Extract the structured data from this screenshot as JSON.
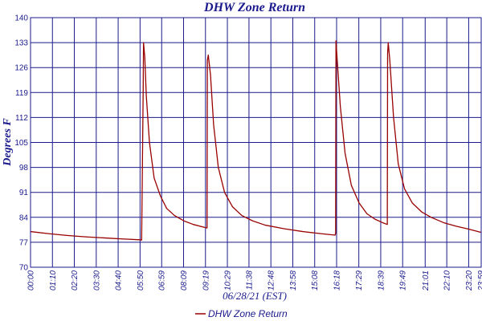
{
  "chart_data": {
    "type": "line",
    "title": "DHW Zone Return",
    "xlabel": "06/28/21 (EST)",
    "ylabel": "Degrees F",
    "ylim": [
      70,
      140
    ],
    "xlim_minutes": [
      0,
      1440
    ],
    "y_ticks": [
      "70",
      "77",
      "84",
      "91",
      "98",
      "105",
      "112",
      "119",
      "126",
      "133",
      "140"
    ],
    "x_ticks": [
      "00:00",
      "01:10",
      "02:20",
      "03:30",
      "04:40",
      "05:50",
      "06:59",
      "08:09",
      "09:19",
      "10:29",
      "11:38",
      "12:48",
      "13:58",
      "15:08",
      "16:18",
      "17:29",
      "18:39",
      "19:49",
      "21:01",
      "22:10",
      "23:20",
      "23:59"
    ],
    "grid": true,
    "legend_position": "bottom-center",
    "series": [
      {
        "name": "DHW Zone Return",
        "color": "#990000",
        "points": [
          [
            "00:00",
            80.0
          ],
          [
            "01:00",
            79.4
          ],
          [
            "02:00",
            78.9
          ],
          [
            "03:00",
            78.5
          ],
          [
            "04:00",
            78.2
          ],
          [
            "05:00",
            77.9
          ],
          [
            "05:50",
            77.7
          ],
          [
            "05:55",
            77.6
          ],
          [
            "06:00",
            120.0
          ],
          [
            "06:01",
            133.0
          ],
          [
            "06:05",
            129.0
          ],
          [
            "06:10",
            118.0
          ],
          [
            "06:20",
            105.0
          ],
          [
            "06:35",
            95.0
          ],
          [
            "06:55",
            90.0
          ],
          [
            "07:15",
            86.5
          ],
          [
            "07:40",
            84.5
          ],
          [
            "08:10",
            83.0
          ],
          [
            "08:40",
            82.0
          ],
          [
            "09:15",
            81.2
          ],
          [
            "09:24",
            81.0
          ],
          [
            "09:25",
            128.0
          ],
          [
            "09:28",
            129.5
          ],
          [
            "09:35",
            124.0
          ],
          [
            "09:45",
            110.0
          ],
          [
            "10:00",
            98.0
          ],
          [
            "10:20",
            91.0
          ],
          [
            "10:45",
            87.0
          ],
          [
            "11:15",
            84.5
          ],
          [
            "11:50",
            83.0
          ],
          [
            "12:30",
            81.8
          ],
          [
            "13:30",
            80.8
          ],
          [
            "14:30",
            80.0
          ],
          [
            "15:30",
            79.4
          ],
          [
            "16:13",
            79.0
          ],
          [
            "16:15",
            79.5
          ],
          [
            "16:16",
            133.5
          ],
          [
            "16:20",
            128.0
          ],
          [
            "16:30",
            115.0
          ],
          [
            "16:45",
            102.0
          ],
          [
            "17:05",
            93.0
          ],
          [
            "17:30",
            88.0
          ],
          [
            "17:55",
            85.0
          ],
          [
            "18:20",
            83.5
          ],
          [
            "18:45",
            82.5
          ],
          [
            "19:00",
            82.0
          ],
          [
            "19:01",
            130.0
          ],
          [
            "19:03",
            133.0
          ],
          [
            "19:08",
            128.0
          ],
          [
            "19:20",
            112.0
          ],
          [
            "19:35",
            99.0
          ],
          [
            "19:55",
            92.0
          ],
          [
            "20:20",
            88.0
          ],
          [
            "20:50",
            85.5
          ],
          [
            "21:20",
            84.0
          ],
          [
            "22:00",
            82.5
          ],
          [
            "22:40",
            81.5
          ],
          [
            "23:20",
            80.7
          ],
          [
            "23:59",
            79.8
          ]
        ]
      }
    ]
  }
}
